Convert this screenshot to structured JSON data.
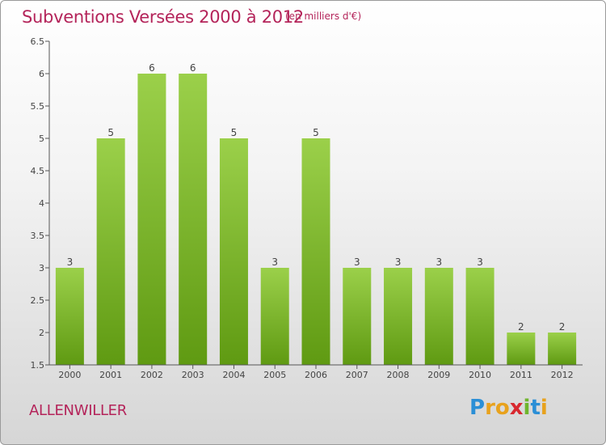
{
  "title": "Subventions Versées 2000 à 2012",
  "subtitle": "(en milliers d'€)",
  "commune": "ALLENWILLER",
  "logo": {
    "letters": [
      {
        "char": "P",
        "color": "#2b8fd6"
      },
      {
        "char": "r",
        "color": "#e8a21d"
      },
      {
        "char": "o",
        "color": "#e8a21d"
      },
      {
        "char": "x",
        "color": "#d8282f"
      },
      {
        "char": "i",
        "color": "#6fb52c"
      },
      {
        "char": "t",
        "color": "#2b8fd6"
      },
      {
        "char": "i",
        "color": "#e8a21d"
      }
    ]
  },
  "colors": {
    "text_accent": "#b4245a",
    "bar_top": "#9bd04a",
    "bar_bottom": "#5f9a12",
    "axis": "#555555"
  },
  "chart_data": {
    "type": "bar",
    "categories": [
      "2000",
      "2001",
      "2002",
      "2003",
      "2004",
      "2005",
      "2006",
      "2007",
      "2008",
      "2009",
      "2010",
      "2011",
      "2012"
    ],
    "values": [
      3,
      5,
      6,
      6,
      5,
      3,
      5,
      3,
      3,
      3,
      3,
      2,
      2
    ],
    "data_labels": [
      "3",
      "5",
      "6",
      "6",
      "5",
      "3",
      "5",
      "3",
      "3",
      "3",
      "3",
      "2",
      "2"
    ],
    "ylim": [
      1.5,
      6.5
    ],
    "yticks": [
      1.5,
      2,
      2.5,
      3,
      3.5,
      4,
      4.5,
      5,
      5.5,
      6,
      6.5
    ],
    "ytick_labels": [
      "1.5",
      "2",
      "2.5",
      "3",
      "3.5",
      "4",
      "4.5",
      "5",
      "5.5",
      "6",
      "6.5"
    ],
    "grid": false,
    "title": "Subventions Versées 2000 à 2012",
    "xlabel": "",
    "ylabel": ""
  }
}
